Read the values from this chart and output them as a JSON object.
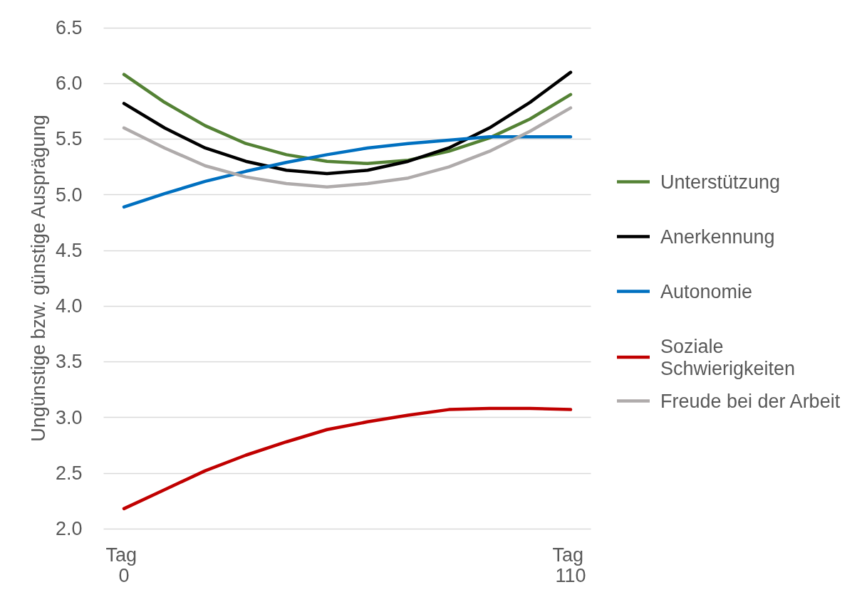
{
  "chart_data": {
    "type": "line",
    "ylabel": "Ungünstige bzw. günstige Ausprägung",
    "categories": [
      "Tag 0",
      null,
      null,
      null,
      null,
      null,
      null,
      null,
      null,
      null,
      null,
      "Tag 110"
    ],
    "series": [
      {
        "name": "Unterstützung",
        "color": "#548235",
        "values": [
          6.08,
          5.83,
          5.62,
          5.46,
          5.36,
          5.3,
          5.28,
          5.31,
          5.39,
          5.51,
          5.68,
          5.9
        ]
      },
      {
        "name": "Anerkennung",
        "color": "#000000",
        "values": [
          5.82,
          5.6,
          5.42,
          5.3,
          5.22,
          5.19,
          5.22,
          5.3,
          5.42,
          5.6,
          5.83,
          6.1
        ]
      },
      {
        "name": "Autonomie",
        "color": "#0070c0",
        "values": [
          4.89,
          5.01,
          5.12,
          5.21,
          5.29,
          5.36,
          5.42,
          5.46,
          5.49,
          5.52,
          5.52,
          5.52
        ]
      },
      {
        "name": "Soziale Schwierigkeiten",
        "color": "#c00000",
        "values": [
          2.18,
          2.35,
          2.52,
          2.66,
          2.78,
          2.89,
          2.96,
          3.02,
          3.07,
          3.08,
          3.08,
          3.07
        ]
      },
      {
        "name": "Freude bei der Arbeit",
        "color": "#afabab",
        "values": [
          5.6,
          5.42,
          5.26,
          5.16,
          5.1,
          5.07,
          5.1,
          5.15,
          5.25,
          5.39,
          5.57,
          5.78
        ]
      }
    ],
    "ylim": [
      2,
      6.5
    ],
    "yticks": [
      {
        "value": 2,
        "label": "2.0"
      },
      2.5,
      {
        "value": 3,
        "label": "3.0"
      },
      3.5,
      {
        "value": 4,
        "label": "4.0"
      },
      4.5,
      {
        "value": 5,
        "label": "5.0"
      },
      5.5,
      {
        "value": 6,
        "label": "6.0"
      },
      6.5
    ],
    "grid": "y",
    "legend": "right",
    "marker": "none",
    "line_style": "solid"
  }
}
